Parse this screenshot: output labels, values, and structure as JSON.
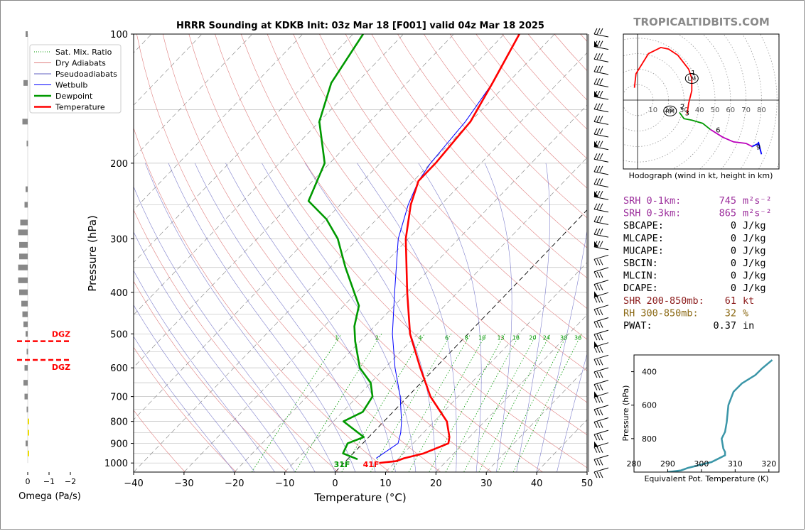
{
  "brand": "TROPICALTIDBITS.COM",
  "colors": {
    "temperature": "#ff0000",
    "dewpoint": "#009900",
    "wetbulb": "#0000ff",
    "dry_adiabat": "#e08080",
    "moist_adiabat": "#6060c0",
    "mixing_ratio": "#009900",
    "isobar": "#c0c0c0",
    "isotherm": "#7f7f7f",
    "hodo_red": "#ff0000",
    "hodo_green": "#009900",
    "hodo_magenta": "#bb00bb",
    "hodo_blue": "#0000ff",
    "srh": "#9b2c9b",
    "shr": "#8b1a1a",
    "rh": "#8b6914",
    "theta_e": "#3b96a8",
    "omega_gray": "#888888",
    "omega_yellow": "#eedd00",
    "dgz": "#ff0000"
  },
  "chart_data": [
    {
      "type": "line",
      "subtype": "skew-T log-p sounding",
      "title": "HRRR Sounding at KDKB Init: 03z Mar 18 [F001] valid 04z Mar 18 2025",
      "xlabel": "Temperature (°C)",
      "ylabel": "Pressure (hPa)",
      "xlim": [
        -40,
        50
      ],
      "ylim": [
        1050,
        100
      ],
      "y_scale": "log",
      "grid": true,
      "xticks": [
        "−40",
        "−30",
        "−20",
        "−10",
        "0",
        "10",
        "20",
        "30",
        "40",
        "50"
      ],
      "yticks": [
        "100",
        "200",
        "300",
        "400",
        "500",
        "600",
        "700",
        "800",
        "900",
        "1000"
      ],
      "legend_position": "top-left",
      "legend": [
        "Sat. Mix. Ratio",
        "Dry Adiabats",
        "Pseudoadiabats",
        "Wetbulb",
        "Dewpoint",
        "Temperature"
      ],
      "mixing_ratio_labels": [
        "1",
        "2",
        "4",
        "6",
        "8",
        "10",
        "13",
        "16",
        "20",
        "24",
        "30",
        "36"
      ],
      "surface_labels": {
        "dewpoint": "31F",
        "temperature": "41F"
      },
      "series": [
        {
          "name": "Temperature",
          "points": [
            [
              1000,
              7
            ],
            [
              990,
              10
            ],
            [
              975,
              11
            ],
            [
              950,
              14
            ],
            [
              900,
              17
            ],
            [
              870,
              16
            ],
            [
              800,
              12.5
            ],
            [
              700,
              4.5
            ],
            [
              600,
              -3
            ],
            [
              500,
              -11.5
            ],
            [
              400,
              -20
            ],
            [
              300,
              -30.5
            ],
            [
              250,
              -36
            ],
            [
              220,
              -39
            ],
            [
              200,
              -39
            ],
            [
              160,
              -40
            ],
            [
              130,
              -43
            ],
            [
              100,
              -47
            ]
          ]
        },
        {
          "name": "Dewpoint",
          "points": [
            [
              980,
              2
            ],
            [
              950,
              -2
            ],
            [
              900,
              -3
            ],
            [
              870,
              -1
            ],
            [
              800,
              -8
            ],
            [
              760,
              -6
            ],
            [
              700,
              -7
            ],
            [
              650,
              -10
            ],
            [
              600,
              -15
            ],
            [
              520,
              -21
            ],
            [
              480,
              -24
            ],
            [
              430,
              -27
            ],
            [
              350,
              -37
            ],
            [
              300,
              -44
            ],
            [
              270,
              -50
            ],
            [
              245,
              -57
            ],
            [
              200,
              -61
            ],
            [
              160,
              -70
            ],
            [
              130,
              -75
            ],
            [
              100,
              -78
            ]
          ]
        },
        {
          "name": "Wetbulb",
          "points": [
            [
              975,
              5.5
            ],
            [
              950,
              6
            ],
            [
              900,
              7
            ],
            [
              850,
              5.5
            ],
            [
              800,
              3.5
            ],
            [
              700,
              -1.5
            ],
            [
              600,
              -8
            ],
            [
              500,
              -15
            ],
            [
              400,
              -22.5
            ],
            [
              300,
              -32
            ],
            [
              250,
              -36.5
            ],
            [
              220,
              -39
            ],
            [
              200,
              -40
            ],
            [
              160,
              -41
            ],
            [
              130,
              -43
            ],
            [
              100,
              -47
            ]
          ]
        }
      ],
      "wind_barb_count": 36
    },
    {
      "type": "line",
      "subtype": "hodograph",
      "xlabel": "Hodograph (wind in kt, height in km)",
      "ring_labels": [
        "10",
        "20",
        "30",
        "40",
        "50",
        "60",
        "70",
        "80"
      ],
      "height_labels": [
        "1",
        "2",
        "3",
        "6",
        "9"
      ],
      "storm_motion_labels": [
        "LM",
        "RM"
      ],
      "series": [
        {
          "name": "0-3 km",
          "points": [
            [
              -2,
              8
            ],
            [
              -1,
              17
            ],
            [
              7,
              30
            ],
            [
              15,
              34
            ],
            [
              20,
              33
            ],
            [
              26,
              29
            ],
            [
              33,
              20
            ],
            [
              35,
              14
            ],
            [
              35,
              6
            ],
            [
              33,
              -2
            ],
            [
              32,
              -9
            ]
          ]
        },
        {
          "name": "3-6 km",
          "points": [
            [
              27,
              -8
            ],
            [
              30,
              -12
            ],
            [
              35,
              -13
            ],
            [
              42,
              -15
            ],
            [
              47,
              -19
            ]
          ]
        },
        {
          "name": "6-9 km",
          "points": [
            [
              47,
              -19
            ],
            [
              55,
              -24
            ],
            [
              62,
              -27
            ],
            [
              70,
              -28
            ],
            [
              74,
              -30
            ]
          ]
        },
        {
          "name": "9+ km",
          "points": [
            [
              74,
              -30
            ],
            [
              78,
              -28
            ],
            [
              80,
              -35
            ],
            [
              78,
              -27
            ]
          ]
        }
      ]
    },
    {
      "type": "line",
      "subtype": "equivalent potential temperature profile",
      "xlabel": "Equivalent Pot. Temperature (K)",
      "ylabel": "Pressure (hPa)",
      "xlim": [
        280,
        323
      ],
      "ylim": [
        1000,
        300
      ],
      "xticks": [
        "280",
        "290",
        "300",
        "310",
        "320"
      ],
      "yticks": [
        "400",
        "600",
        "800"
      ],
      "series": [
        {
          "name": "theta-e",
          "points": [
            [
              1000,
              290
            ],
            [
              990,
              294
            ],
            [
              975,
              296
            ],
            [
              940,
              303
            ],
            [
              900,
              307
            ],
            [
              880,
              307
            ],
            [
              860,
              306.5
            ],
            [
              800,
              306
            ],
            [
              760,
              307
            ],
            [
              700,
              307.5
            ],
            [
              600,
              308
            ],
            [
              520,
              309.5
            ],
            [
              470,
              312
            ],
            [
              420,
              316
            ],
            [
              380,
              318
            ],
            [
              330,
              321
            ]
          ]
        }
      ]
    },
    {
      "type": "bar",
      "subtype": "omega profile",
      "xlabel": "Omega (Pa/s)",
      "xticks": [
        "0",
        "−1",
        "−2"
      ],
      "dgz_label": "DGZ",
      "dgz_levels_hpa": [
        520,
        575
      ],
      "values": [
        [
          100,
          -0.1
        ],
        [
          130,
          -0.2
        ],
        [
          160,
          -0.25
        ],
        [
          180,
          -0.05
        ],
        [
          230,
          -0.1
        ],
        [
          250,
          -0.15
        ],
        [
          275,
          -0.35
        ],
        [
          290,
          -0.45
        ],
        [
          310,
          -0.4
        ],
        [
          330,
          -0.4
        ],
        [
          350,
          -0.45
        ],
        [
          375,
          -0.45
        ],
        [
          400,
          -0.4
        ],
        [
          425,
          -0.3
        ],
        [
          450,
          -0.25
        ],
        [
          475,
          -0.2
        ],
        [
          500,
          -0.1
        ],
        [
          550,
          -0.05
        ],
        [
          600,
          -0.15
        ],
        [
          650,
          -0.2
        ],
        [
          700,
          -0.15
        ],
        [
          750,
          -0.05
        ],
        [
          800,
          0.05
        ],
        [
          850,
          0.05
        ],
        [
          900,
          -0.1
        ],
        [
          950,
          0.05
        ]
      ]
    }
  ],
  "indices": [
    {
      "label": "SRH 0-1km:",
      "value": "745",
      "unit": "m²s⁻²",
      "color": "srh"
    },
    {
      "label": "SRH 0-3km:",
      "value": "865",
      "unit": "m²s⁻²",
      "color": "srh"
    },
    {
      "label": "SBCAPE:",
      "value": "0",
      "unit": "J/kg",
      "color": "black"
    },
    {
      "label": "MLCAPE:",
      "value": "0",
      "unit": "J/kg",
      "color": "black"
    },
    {
      "label": "MUCAPE:",
      "value": "0",
      "unit": "J/kg",
      "color": "black"
    },
    {
      "label": "SBCIN:",
      "value": "0",
      "unit": "J/kg",
      "color": "black"
    },
    {
      "label": "MLCIN:",
      "value": "0",
      "unit": "J/kg",
      "color": "black"
    },
    {
      "label": "DCAPE:",
      "value": "0",
      "unit": "J/kg",
      "color": "black"
    },
    {
      "label": "SHR 200-850mb:",
      "value": "61",
      "unit": "kt",
      "color": "shr"
    },
    {
      "label": "RH 300-850mb:",
      "value": "32",
      "unit": "%",
      "color": "rh"
    },
    {
      "label": "PWAT:",
      "value": "0.37",
      "unit": "in",
      "color": "black"
    }
  ]
}
